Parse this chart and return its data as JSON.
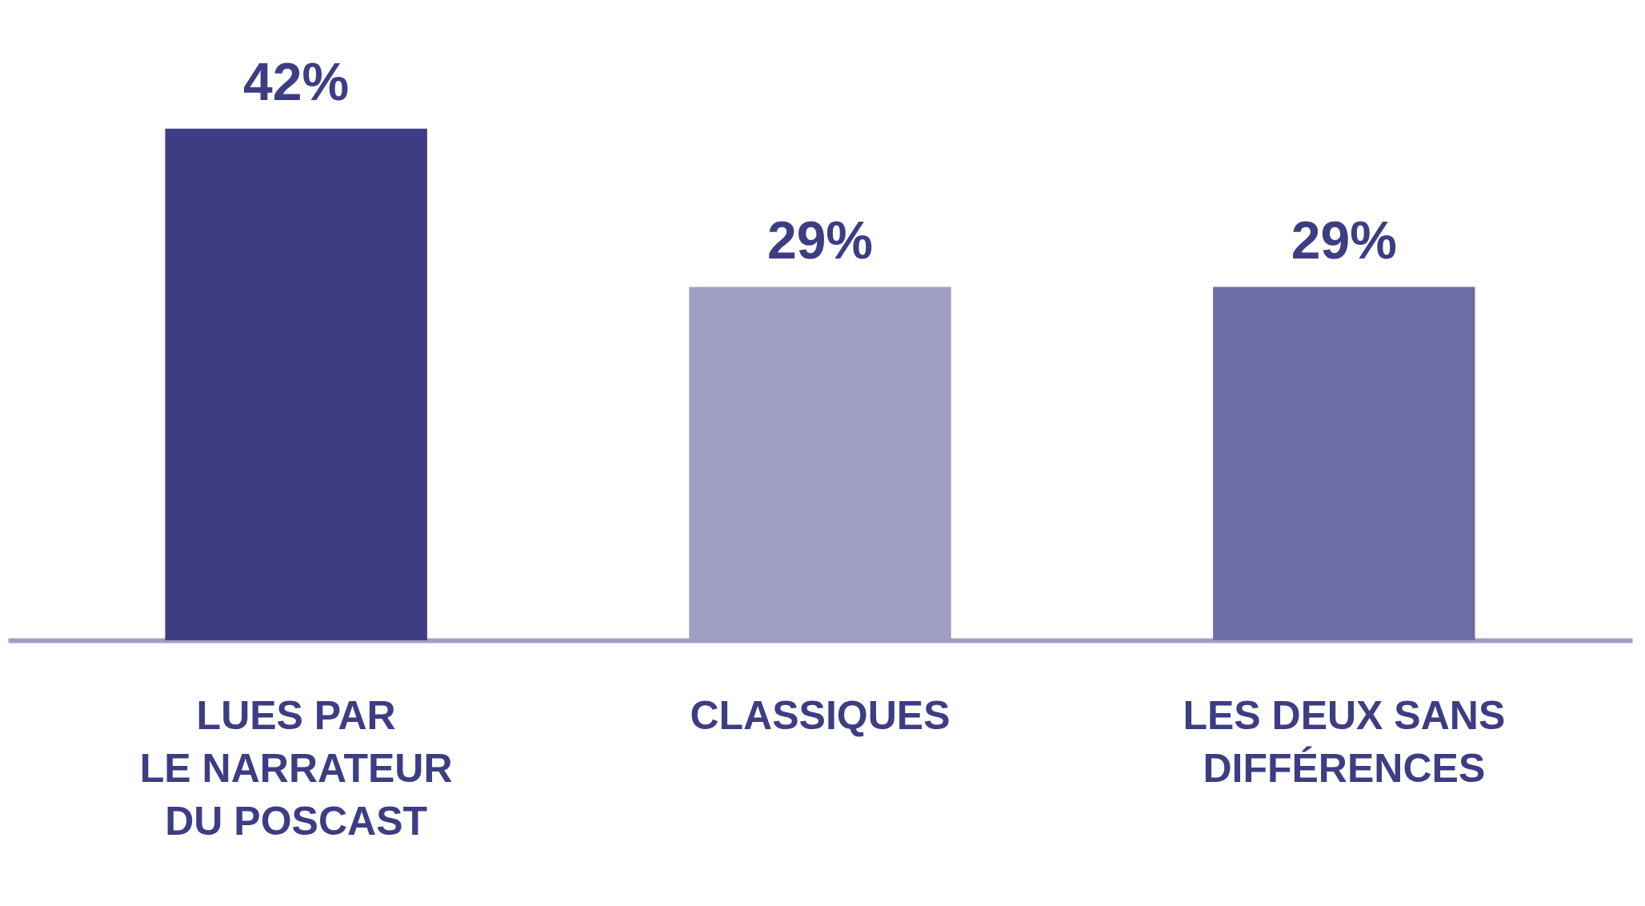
{
  "chart_data": {
    "type": "bar",
    "categories": [
      "LUES PAR\nLE NARRATEUR\nDU POSCAST",
      "CLASSIQUES",
      "LES DEUX SANS\nDIFFÉRENCES"
    ],
    "values": [
      42,
      29,
      29
    ],
    "colors": [
      "#3d3d84",
      "#a09fc3",
      "#6d6ea5"
    ],
    "value_labels": [
      "42%",
      "29%",
      "29%"
    ],
    "grid": false,
    "legend": false
  }
}
